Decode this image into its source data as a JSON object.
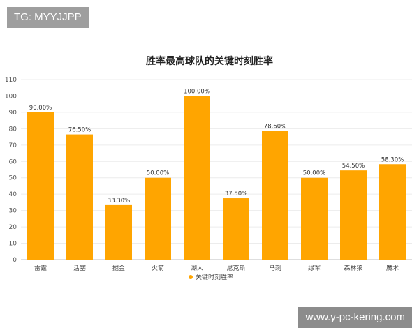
{
  "watermark_top": "TG: MYYJJPP",
  "watermark_bottom": "www.y-pc-kering.com",
  "chart_data": {
    "type": "bar",
    "title": "胜率最高球队的关键时刻胜率",
    "categories": [
      "雷霆",
      "活塞",
      "掘金",
      "火箭",
      "湖人",
      "尼克斯",
      "马刺",
      "绿军",
      "森林狼",
      "魔术"
    ],
    "series": [
      {
        "name": "关键时刻胜率",
        "values": [
          90.0,
          76.5,
          33.3,
          50.0,
          100.0,
          37.5,
          78.6,
          50.0,
          54.5,
          58.3
        ],
        "labels": [
          "90.00%",
          "76.50%",
          "33.30%",
          "50.00%",
          "100.00%",
          "37.50%",
          "78.60%",
          "50.00%",
          "54.50%",
          "58.30%"
        ],
        "color": "#FFA500"
      }
    ],
    "yticks": [
      "0",
      "10",
      "20",
      "30",
      "40",
      "50",
      "60",
      "70",
      "80",
      "90",
      "100",
      "110"
    ],
    "ylim": [
      0,
      110
    ],
    "grid": true,
    "legend_position": "bottom"
  }
}
